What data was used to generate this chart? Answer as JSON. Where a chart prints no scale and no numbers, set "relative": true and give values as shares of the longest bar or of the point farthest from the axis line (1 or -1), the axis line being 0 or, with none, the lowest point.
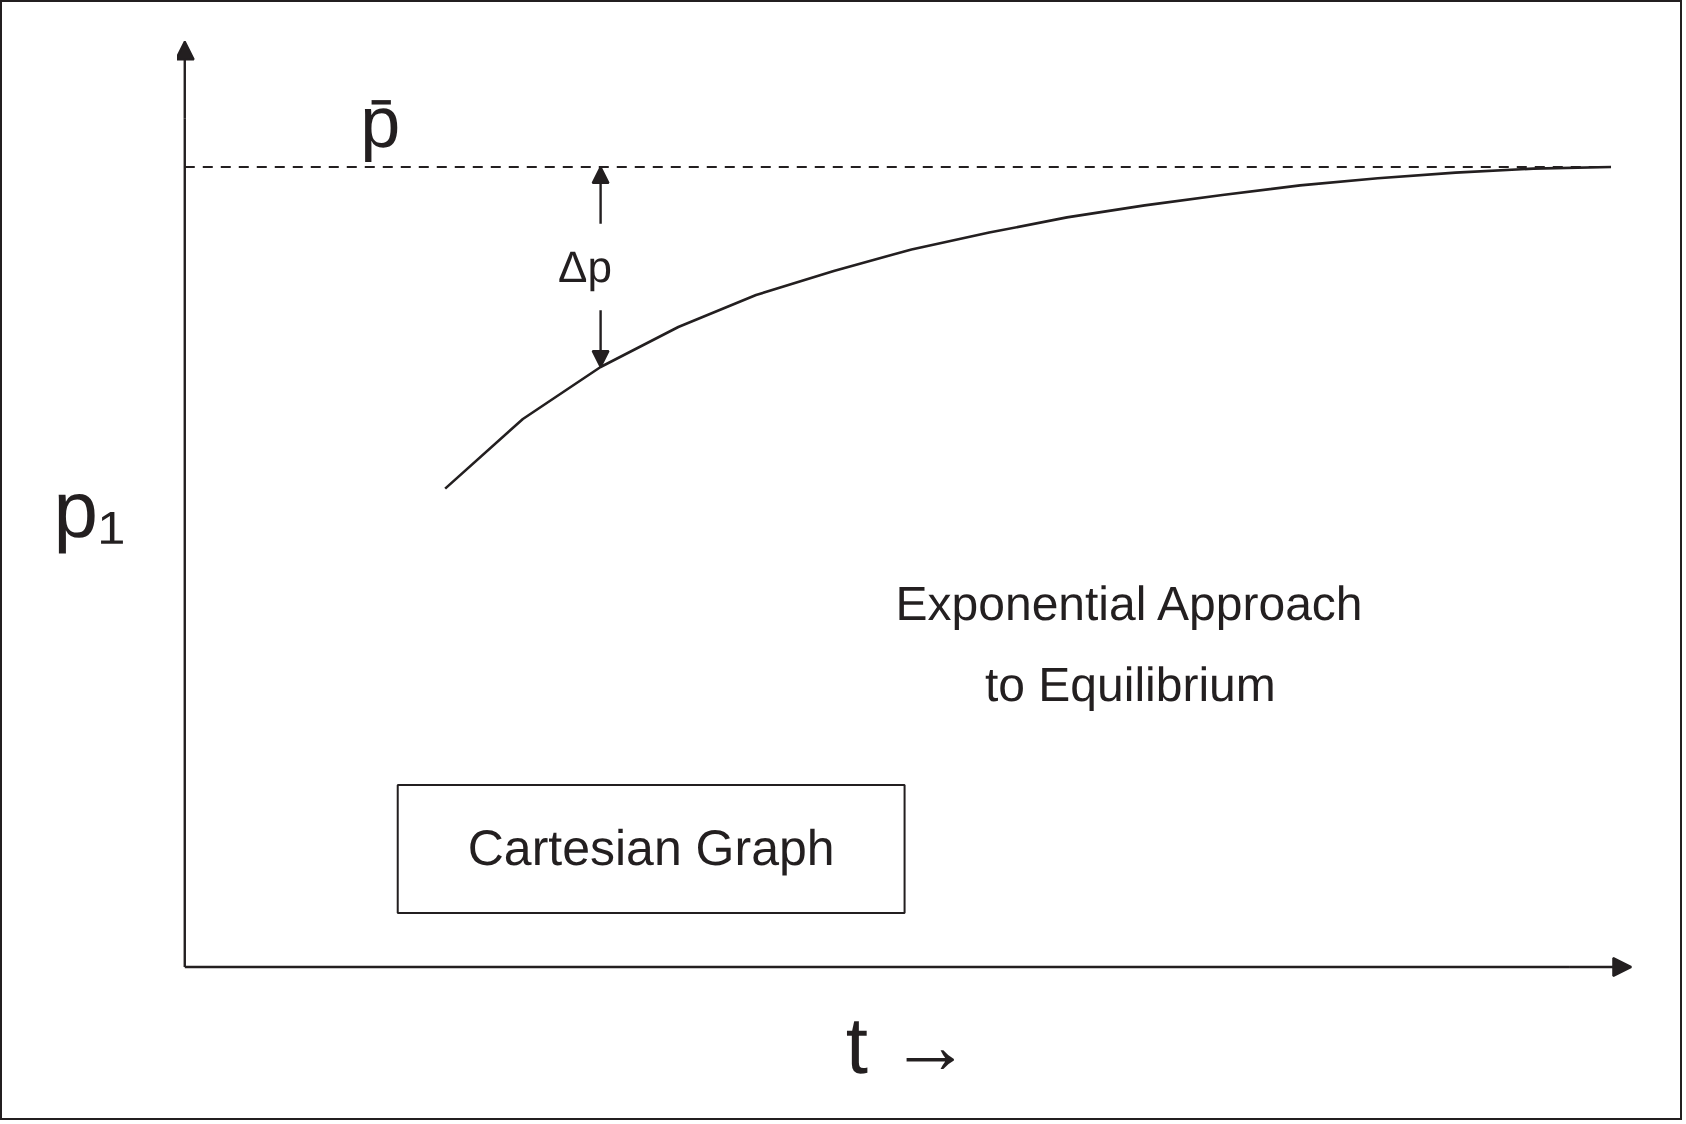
{
  "chart_data": {
    "type": "line",
    "xlabel": "t →",
    "ylabel": "p₁",
    "categories": [
      null,
      null,
      null,
      null,
      null,
      null,
      null,
      null,
      null,
      null,
      null,
      null,
      null,
      null,
      null,
      null,
      null,
      null,
      null
    ],
    "series": [
      {
        "color": "#231f20",
        "values": [
          null,
          null,
          null,
          0.598,
          0.685,
          0.75,
          0.8,
          0.84,
          0.87,
          0.897,
          0.918,
          0.937,
          0.952,
          0.965,
          0.977,
          0.986,
          0.993,
          0.998,
          1
        ]
      }
    ],
    "relative": true,
    "ref_lines": [
      {
        "axis": "y",
        "value": 1,
        "label": "p̄",
        "color": "#231f20",
        "line_style": "dashed"
      }
    ],
    "annotations": [
      "Δp",
      "Exponential Approach to Equilibrium",
      "Cartesian Graph"
    ]
  }
}
